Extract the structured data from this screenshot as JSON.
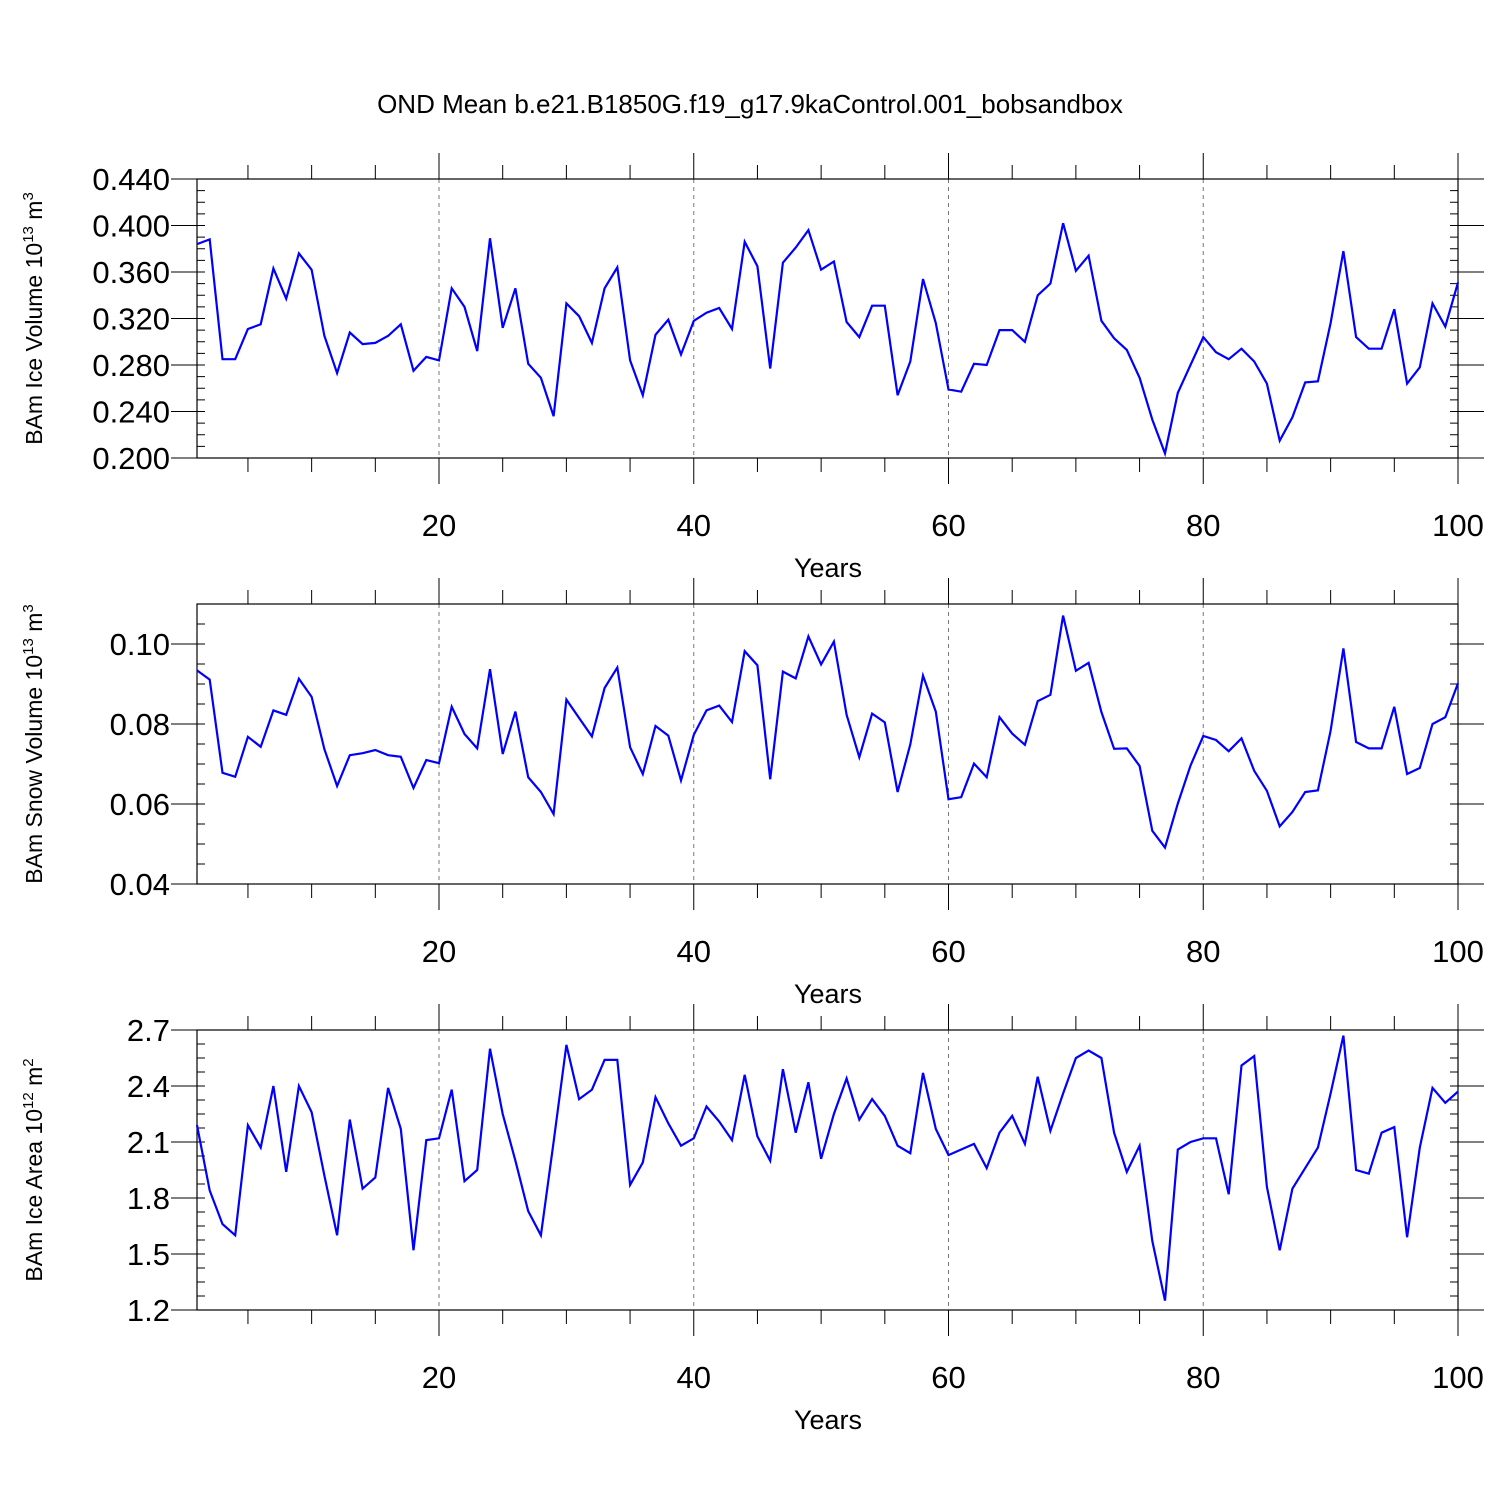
{
  "figure": {
    "title": "OND Mean b.e21.B1850G.f19_g17.9kaControl.001_bobsandbox",
    "line_color": "#0000ff"
  },
  "chart_data": [
    {
      "type": "line",
      "xlabel": "Years",
      "ylabel": "BAm Ice Volume 10",
      "ylabel_exp": "13",
      "ylabel_unit": " m",
      "ylabel_unit_exp": "3",
      "xlim": [
        1,
        100
      ],
      "ylim": [
        0.2,
        0.44
      ],
      "xticks": [
        20,
        40,
        60,
        80,
        100
      ],
      "xtick_labels": [
        "20",
        "40",
        "60",
        "80",
        "100"
      ],
      "yticks": [
        0.2,
        0.24,
        0.28,
        0.32,
        0.36,
        0.4,
        0.44
      ],
      "ytick_labels": [
        "0.200",
        "0.240",
        "0.280",
        "0.320",
        "0.360",
        "0.400",
        "0.440"
      ],
      "vgrid": [
        20,
        40,
        60,
        80
      ],
      "x": [
        1,
        2,
        3,
        4,
        5,
        6,
        7,
        8,
        9,
        10,
        11,
        12,
        13,
        14,
        15,
        16,
        17,
        18,
        19,
        20,
        21,
        22,
        23,
        24,
        25,
        26,
        27,
        28,
        29,
        30,
        31,
        32,
        33,
        34,
        35,
        36,
        37,
        38,
        39,
        40,
        41,
        42,
        43,
        44,
        45,
        46,
        47,
        48,
        49,
        50,
        51,
        52,
        53,
        54,
        55,
        56,
        57,
        58,
        59,
        60,
        61,
        62,
        63,
        64,
        65,
        66,
        67,
        68,
        69,
        70,
        71,
        72,
        73,
        74,
        75,
        76,
        77,
        78,
        79,
        80,
        81,
        82,
        83,
        84,
        85,
        86,
        87,
        88,
        89,
        90,
        91,
        92,
        93,
        94,
        95,
        96,
        97,
        98,
        99,
        100
      ],
      "series": [
        {
          "values": [
            0.384,
            0.388,
            0.285,
            0.285,
            0.311,
            0.315,
            0.363,
            0.337,
            0.376,
            0.362,
            0.305,
            0.273,
            0.308,
            0.298,
            0.299,
            0.305,
            0.315,
            0.275,
            0.287,
            0.284,
            0.346,
            0.33,
            0.292,
            0.389,
            0.312,
            0.346,
            0.281,
            0.269,
            0.236,
            0.333,
            0.322,
            0.299,
            0.346,
            0.364,
            0.284,
            0.254,
            0.306,
            0.319,
            0.289,
            0.318,
            0.325,
            0.329,
            0.311,
            0.386,
            0.365,
            0.277,
            0.368,
            0.381,
            0.396,
            0.362,
            0.369,
            0.317,
            0.304,
            0.331,
            0.331,
            0.254,
            0.283,
            0.354,
            0.316,
            0.259,
            0.257,
            0.281,
            0.28,
            0.31,
            0.31,
            0.3,
            0.34,
            0.35,
            0.402,
            0.361,
            0.374,
            0.318,
            0.303,
            0.293,
            0.269,
            0.233,
            0.204,
            0.256,
            0.28,
            0.304,
            0.291,
            0.285,
            0.294,
            0.283,
            0.264,
            0.215,
            0.235,
            0.265,
            0.266,
            0.316,
            0.378,
            0.304,
            0.294,
            0.294,
            0.328,
            0.264,
            0.278,
            0.333,
            0.313,
            0.351
          ]
        }
      ]
    },
    {
      "type": "line",
      "xlabel": "Years",
      "ylabel": "BAm Snow Volume 10",
      "ylabel_exp": "13",
      "ylabel_unit": " m",
      "ylabel_unit_exp": "3",
      "xlim": [
        1,
        100
      ],
      "ylim": [
        0.04,
        0.11
      ],
      "xticks": [
        20,
        40,
        60,
        80,
        100
      ],
      "xtick_labels": [
        "20",
        "40",
        "60",
        "80",
        "100"
      ],
      "yticks": [
        0.04,
        0.06,
        0.08,
        0.1
      ],
      "ytick_labels": [
        "0.04",
        "0.06",
        "0.08",
        "0.10"
      ],
      "vgrid": [
        20,
        40,
        60,
        80
      ],
      "x": [
        1,
        2,
        3,
        4,
        5,
        6,
        7,
        8,
        9,
        10,
        11,
        12,
        13,
        14,
        15,
        16,
        17,
        18,
        19,
        20,
        21,
        22,
        23,
        24,
        25,
        26,
        27,
        28,
        29,
        30,
        31,
        32,
        33,
        34,
        35,
        36,
        37,
        38,
        39,
        40,
        41,
        42,
        43,
        44,
        45,
        46,
        47,
        48,
        49,
        50,
        51,
        52,
        53,
        54,
        55,
        56,
        57,
        58,
        59,
        60,
        61,
        62,
        63,
        64,
        65,
        66,
        67,
        68,
        69,
        70,
        71,
        72,
        73,
        74,
        75,
        76,
        77,
        78,
        79,
        80,
        81,
        82,
        83,
        84,
        85,
        86,
        87,
        88,
        89,
        90,
        91,
        92,
        93,
        94,
        95,
        96,
        97,
        98,
        99,
        100
      ],
      "series": [
        {
          "values": [
            0.0934,
            0.0911,
            0.0678,
            0.0668,
            0.0768,
            0.0743,
            0.0834,
            0.0823,
            0.0913,
            0.0868,
            0.0737,
            0.0645,
            0.0722,
            0.0727,
            0.0735,
            0.0722,
            0.0718,
            0.064,
            0.071,
            0.0702,
            0.0843,
            0.0775,
            0.0739,
            0.0937,
            0.0725,
            0.0831,
            0.0667,
            0.063,
            0.0575,
            0.0861,
            0.0815,
            0.0769,
            0.089,
            0.0941,
            0.0742,
            0.0675,
            0.0795,
            0.0771,
            0.0659,
            0.0773,
            0.0834,
            0.0846,
            0.0805,
            0.0982,
            0.0947,
            0.0662,
            0.0931,
            0.0914,
            0.1019,
            0.0949,
            0.1006,
            0.0823,
            0.0717,
            0.0826,
            0.0804,
            0.063,
            0.0749,
            0.0921,
            0.0831,
            0.0612,
            0.0617,
            0.0701,
            0.0667,
            0.0817,
            0.0776,
            0.0748,
            0.0857,
            0.0873,
            0.1071,
            0.0933,
            0.0953,
            0.083,
            0.0738,
            0.0739,
            0.0695,
            0.0533,
            0.0491,
            0.0601,
            0.0696,
            0.077,
            0.076,
            0.0732,
            0.0764,
            0.0683,
            0.0633,
            0.0544,
            0.058,
            0.063,
            0.0634,
            0.0783,
            0.0989,
            0.0755,
            0.0739,
            0.0739,
            0.0843,
            0.0675,
            0.069,
            0.08,
            0.0817,
            0.0902
          ]
        }
      ]
    },
    {
      "type": "line",
      "xlabel": "Years",
      "ylabel": "BAm Ice Area 10",
      "ylabel_exp": "12",
      "ylabel_unit": " m",
      "ylabel_unit_exp": "2",
      "xlim": [
        1,
        100
      ],
      "ylim": [
        1.2,
        2.7
      ],
      "xticks": [
        20,
        40,
        60,
        80,
        100
      ],
      "xtick_labels": [
        "20",
        "40",
        "60",
        "80",
        "100"
      ],
      "yticks": [
        1.2,
        1.5,
        1.8,
        2.1,
        2.4,
        2.7
      ],
      "ytick_labels": [
        "1.2",
        "1.5",
        "1.8",
        "2.1",
        "2.4",
        "2.7"
      ],
      "vgrid": [
        20,
        40,
        60,
        80
      ],
      "x": [
        1,
        2,
        3,
        4,
        5,
        6,
        7,
        8,
        9,
        10,
        11,
        12,
        13,
        14,
        15,
        16,
        17,
        18,
        19,
        20,
        21,
        22,
        23,
        24,
        25,
        26,
        27,
        28,
        29,
        30,
        31,
        32,
        33,
        34,
        35,
        36,
        37,
        38,
        39,
        40,
        41,
        42,
        43,
        44,
        45,
        46,
        47,
        48,
        49,
        50,
        51,
        52,
        53,
        54,
        55,
        56,
        57,
        58,
        59,
        60,
        61,
        62,
        63,
        64,
        65,
        66,
        67,
        68,
        69,
        70,
        71,
        72,
        73,
        74,
        75,
        76,
        77,
        78,
        79,
        80,
        81,
        82,
        83,
        84,
        85,
        86,
        87,
        88,
        89,
        90,
        91,
        92,
        93,
        94,
        95,
        96,
        97,
        98,
        99,
        100
      ],
      "series": [
        {
          "values": [
            2.19,
            1.84,
            1.66,
            1.6,
            2.19,
            2.07,
            2.4,
            1.94,
            2.4,
            2.26,
            1.92,
            1.6,
            2.22,
            1.85,
            1.91,
            2.39,
            2.17,
            1.52,
            2.11,
            2.12,
            2.38,
            1.89,
            1.95,
            2.6,
            2.25,
            2.0,
            1.73,
            1.6,
            2.1,
            2.62,
            2.33,
            2.38,
            2.54,
            2.54,
            1.87,
            1.99,
            2.34,
            2.2,
            2.08,
            2.12,
            2.29,
            2.21,
            2.11,
            2.46,
            2.13,
            2.0,
            2.49,
            2.15,
            2.42,
            2.01,
            2.25,
            2.44,
            2.22,
            2.33,
            2.24,
            2.08,
            2.04,
            2.47,
            2.17,
            2.03,
            2.06,
            2.09,
            1.96,
            2.15,
            2.24,
            2.09,
            2.45,
            2.16,
            2.36,
            2.55,
            2.59,
            2.55,
            2.15,
            1.94,
            2.08,
            1.57,
            1.25,
            2.06,
            2.1,
            2.12,
            2.12,
            1.82,
            2.51,
            2.56,
            1.86,
            1.52,
            1.85,
            1.96,
            2.07,
            2.36,
            2.67,
            1.95,
            1.93,
            2.15,
            2.18,
            1.59,
            2.07,
            2.39,
            2.31,
            2.37
          ]
        }
      ]
    }
  ]
}
